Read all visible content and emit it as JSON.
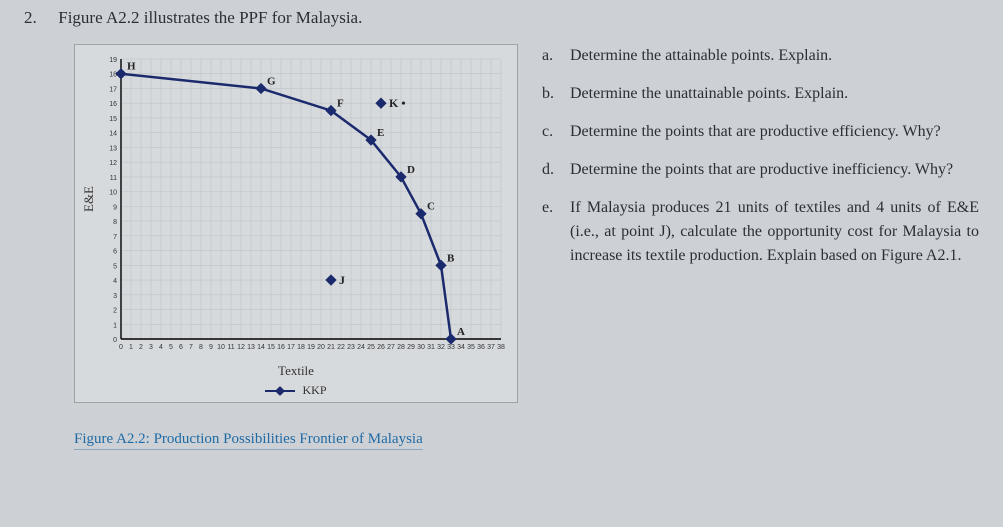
{
  "question": {
    "number": "2.",
    "text": "Figure A2.2 illustrates the PPF for Malaysia."
  },
  "chart": {
    "type": "line",
    "background_color": "#d7dadd",
    "grid_color": "#bfc3c6",
    "axis_color": "#000000",
    "line_color": "#1a2a6c",
    "line_width": 2.5,
    "marker_size": 4,
    "xlabel": "Textile",
    "ylabel": "E&E",
    "xlim": [
      0,
      38
    ],
    "ylim": [
      0,
      19
    ],
    "xtick_step": 1,
    "ytick_step": 1,
    "xtick_labels": [
      "0",
      "1",
      "2",
      "3",
      "4",
      "5",
      "6",
      "7",
      "8",
      "9",
      "10",
      "11",
      "12",
      "13",
      "14",
      "15",
      "16",
      "17",
      "18",
      "19",
      "20",
      "21",
      "22",
      "23",
      "24",
      "25",
      "26",
      "27",
      "28",
      "29",
      "30",
      "31",
      "32",
      "33",
      "34",
      "35",
      "36",
      "37",
      "38"
    ],
    "ytick_labels": [
      "0",
      "1",
      "2",
      "3",
      "4",
      "5",
      "6",
      "7",
      "8",
      "9",
      "10",
      "11",
      "12",
      "13",
      "14",
      "15",
      "16",
      "17",
      "18",
      "19"
    ],
    "tick_fontsize": 7,
    "label_fontsize": 13,
    "ppf_points": [
      {
        "name": "H",
        "x": 0,
        "y": 18
      },
      {
        "name": "G",
        "x": 14,
        "y": 17
      },
      {
        "name": "F",
        "x": 21,
        "y": 15.5
      },
      {
        "name": "E",
        "x": 25,
        "y": 13.5
      },
      {
        "name": "D",
        "x": 28,
        "y": 11
      },
      {
        "name": "C",
        "x": 30,
        "y": 8.5
      },
      {
        "name": "B",
        "x": 32,
        "y": 5
      },
      {
        "name": "A",
        "x": 33,
        "y": 0
      }
    ],
    "off_curve_points": [
      {
        "name": "K",
        "x": 26,
        "y": 16,
        "suffix": " •"
      },
      {
        "name": "J",
        "x": 21,
        "y": 4
      }
    ],
    "legend": "KKP"
  },
  "subquestions": {
    "a": {
      "letter": "a.",
      "text": "Determine the attainable points. Explain."
    },
    "b": {
      "letter": "b.",
      "text": "Determine the unattainable points. Explain."
    },
    "c": {
      "letter": "c.",
      "text": "Determine the points that are productive efficiency. Why?"
    },
    "d": {
      "letter": "d.",
      "text": "Determine the points that are productive inefficiency. Why?"
    },
    "e": {
      "letter": "e.",
      "text": "If Malaysia produces 21 units of textiles and 4 units of E&E (i.e., at point J), calculate the opportunity cost for Malaysia to increase its textile production. Explain based on Figure A2.1."
    }
  },
  "caption": "Figure A2.2: Production Possibilities Frontier of Malaysia"
}
